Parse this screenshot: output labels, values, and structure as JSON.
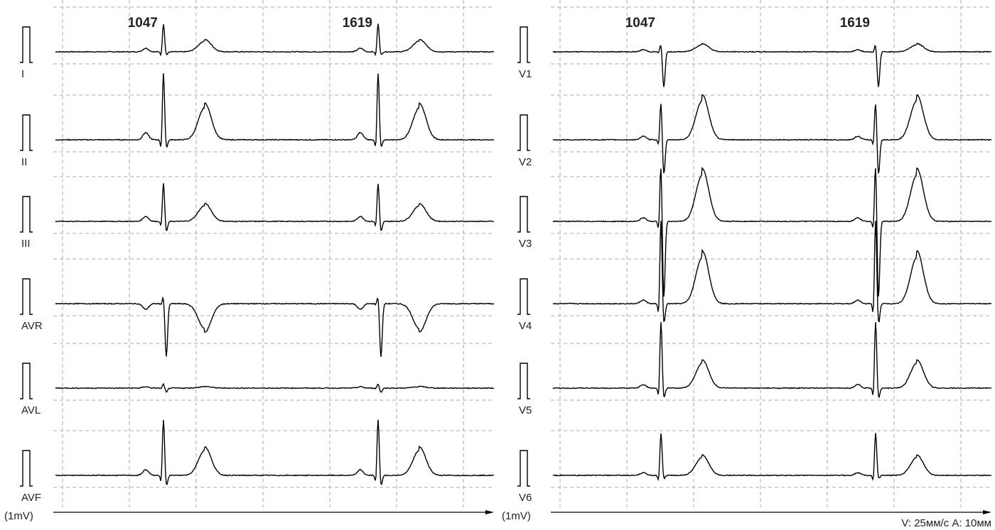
{
  "left_panel": {
    "beat_labels": [
      "1047",
      "1619"
    ],
    "leads": [
      "I",
      "II",
      "III",
      "AVR",
      "AVL",
      "AVF"
    ],
    "calibration": "(1mV)"
  },
  "right_panel": {
    "beat_labels": [
      "1047",
      "1619"
    ],
    "leads": [
      "V1",
      "V2",
      "V3",
      "V4",
      "V5",
      "V6"
    ],
    "calibration": "(1mV)"
  },
  "footer": "V: 25мм/с  A: 10мм"
}
